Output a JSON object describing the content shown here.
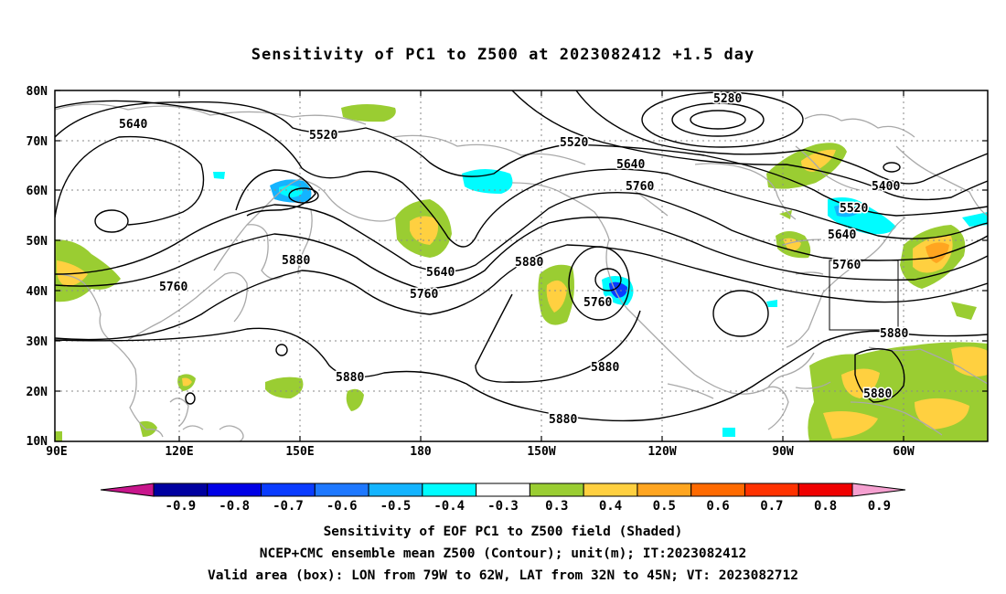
{
  "title": "Sensitivity of PC1 to Z500 at 2023082412 +1.5 day",
  "lat_labels": [
    "80N",
    "70N",
    "60N",
    "50N",
    "40N",
    "30N",
    "20N",
    "10N"
  ],
  "lon_labels": [
    "90E",
    "120E",
    "150E",
    "180",
    "150W",
    "120W",
    "90W",
    "60W"
  ],
  "contour_labels": [
    "5280",
    "5400",
    "5520",
    "5520",
    "5520",
    "5640",
    "5640",
    "5640",
    "5640",
    "5760",
    "5760",
    "5760",
    "5760",
    "5760",
    "5880",
    "5880",
    "5880",
    "5880",
    "5880",
    "5880",
    "5880"
  ],
  "colorbar": {
    "labels": [
      "-0.9",
      "-0.8",
      "-0.7",
      "-0.6",
      "-0.5",
      "-0.4",
      "-0.3",
      "0.3",
      "0.4",
      "0.5",
      "0.6",
      "0.7",
      "0.8",
      "0.9"
    ],
    "colors": [
      "#0000a0",
      "#0000e6",
      "#0a3cff",
      "#1e78ff",
      "#14b4ff",
      "#00fcff",
      "#ffffff",
      "#9acd32",
      "#ffd040",
      "#ffa520",
      "#ff6a00",
      "#ff3200",
      "#f00000"
    ],
    "low_end_color": "#c8168c",
    "high_end_color": "#f5a0d0"
  },
  "captions": {
    "line1": "Sensitivity of EOF PC1 to Z500 field (Shaded)",
    "line2": "NCEP+CMC ensemble mean Z500 (Contour); unit(m); IT:2023082412",
    "line3": "Valid area (box): LON from 79W to 62W, LAT from 32N to 45N; VT: 2023082712"
  }
}
